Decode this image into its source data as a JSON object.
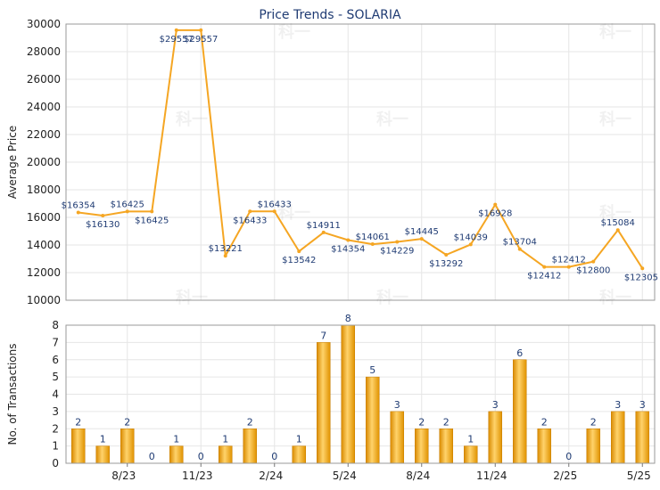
{
  "chart_data": [
    {
      "type": "line",
      "title": "Price Trends - SOLARIA",
      "xlabel": "",
      "ylabel": "Average Price",
      "ylim": [
        10000,
        30000
      ],
      "yticks": [
        10000,
        12000,
        14000,
        16000,
        18000,
        20000,
        22000,
        24000,
        26000,
        28000,
        30000
      ],
      "grid": true,
      "line_color": "#f5a623",
      "series": [
        {
          "values": [
            16354,
            16130,
            16425,
            16425,
            29557,
            29557,
            13221,
            16433,
            16433,
            13542,
            14911,
            14354,
            14061,
            14229,
            14445,
            13292,
            14039,
            16928,
            13704,
            12412,
            12412,
            12800,
            15084,
            12305
          ],
          "labels": [
            "$16354",
            "$16130",
            "$16425",
            "$16425",
            "$29557",
            "$29557",
            "$13221",
            "$16433",
            "$16433",
            "$13542",
            "$14911",
            "$14354",
            "$14061",
            "$14229",
            "$14445",
            "$13292",
            "$14039",
            "$16928",
            "$13704",
            "$12412",
            "$12412",
            "$12800",
            "$15084",
            "$12305"
          ]
        }
      ]
    },
    {
      "type": "bar",
      "title": "",
      "xlabel": "",
      "ylabel": "No. of Transactions",
      "ylim": [
        0,
        8
      ],
      "yticks": [
        0,
        1,
        2,
        3,
        4,
        5,
        6,
        7,
        8
      ],
      "grid": true,
      "bar_color": "#f5a623",
      "values": [
        2,
        1,
        2,
        0,
        1,
        0,
        1,
        2,
        0,
        1,
        7,
        8,
        5,
        3,
        2,
        2,
        1,
        3,
        6,
        2,
        0,
        2,
        3,
        3
      ],
      "x_tick_labels": [
        "8/23",
        "11/23",
        "2/24",
        "5/24",
        "8/24",
        "11/24",
        "2/25",
        "5/25"
      ]
    }
  ],
  "watermark_text": "科一"
}
